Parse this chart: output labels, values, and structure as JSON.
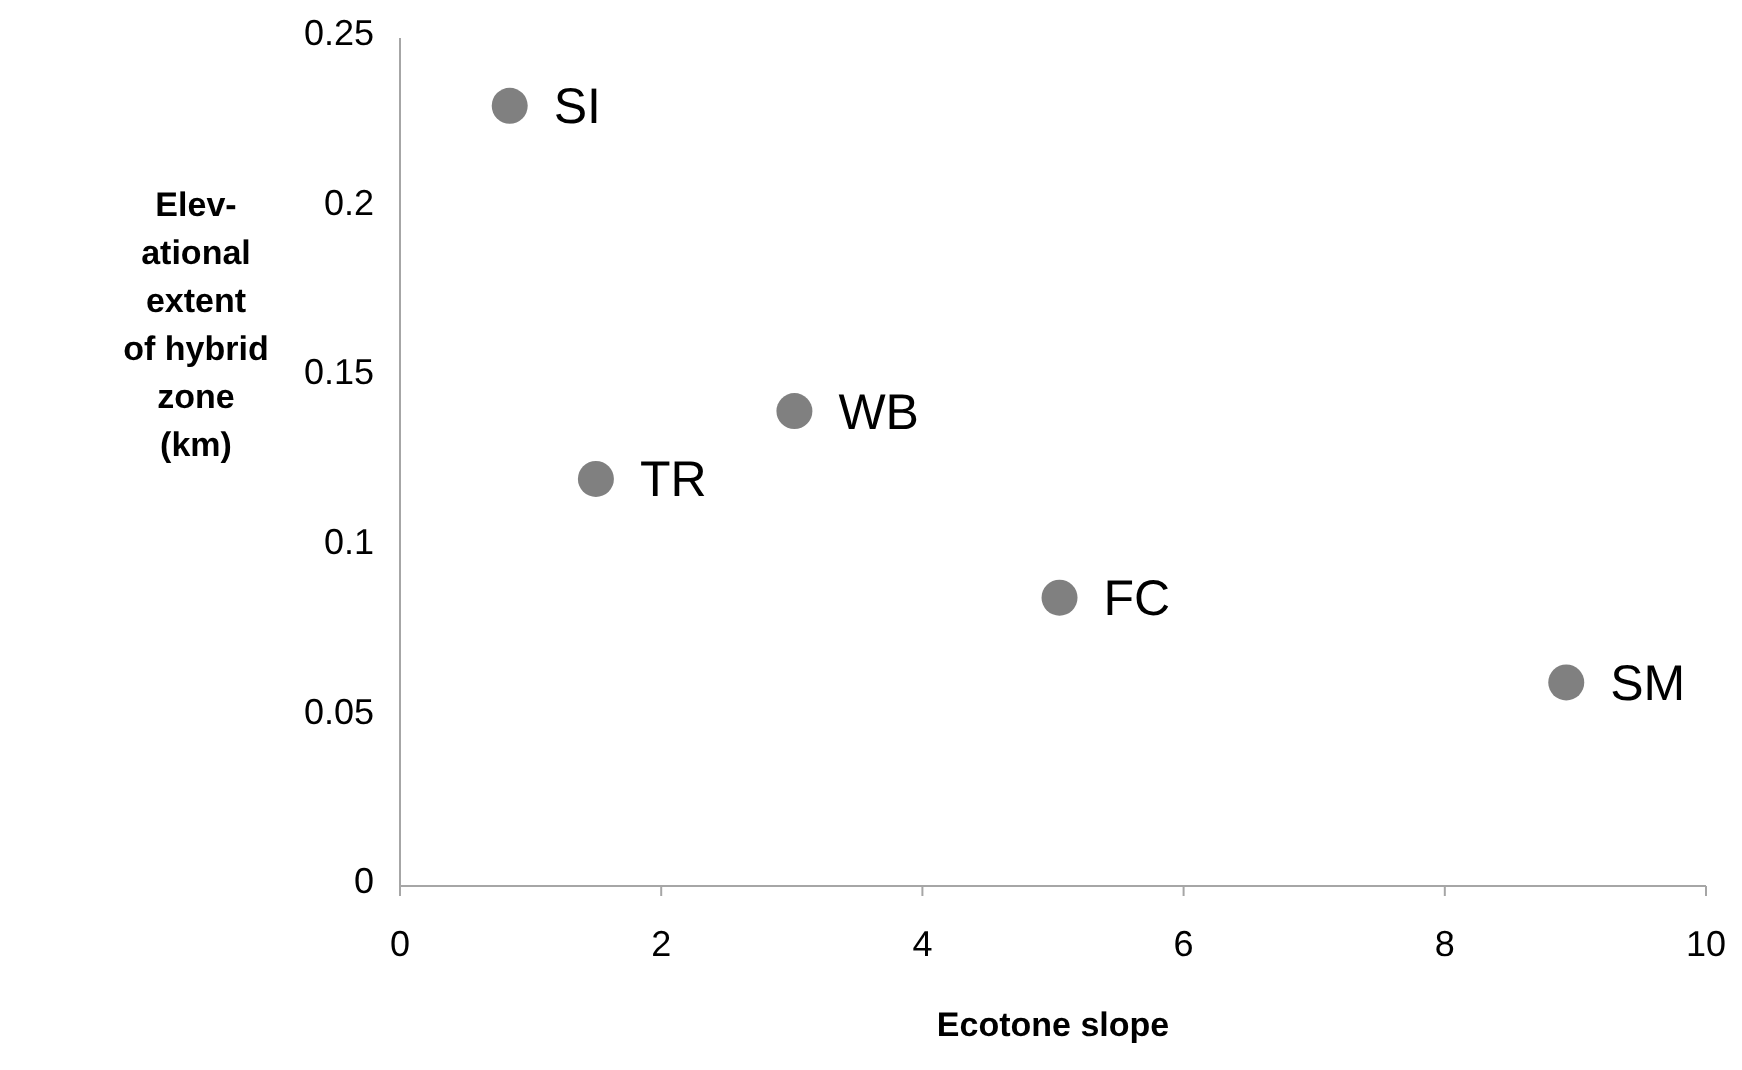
{
  "chart_data": {
    "type": "scatter",
    "xlabel": "Ecotone slope",
    "ylabel": "Elev-\national\nextent\nof hybrid\nzone\n(km)",
    "x": [
      0.84,
      1.5,
      3.02,
      5.05,
      8.93
    ],
    "series": [
      {
        "color": "#808080",
        "values": [
          0.23,
          0.12,
          0.14,
          0.085,
          0.06
        ]
      }
    ],
    "xlim": [
      0,
      10
    ],
    "xticks": [
      0,
      2,
      4,
      6,
      8,
      10
    ],
    "ylim": [
      0,
      0.25
    ],
    "yticks": [
      0,
      0.05,
      0.1,
      0.15,
      0.2,
      0.25
    ],
    "grid": false,
    "marker": "circle",
    "annotations": [
      {
        "text": "SI",
        "x": 0.84,
        "y": 0.23
      },
      {
        "text": "TR",
        "x": 1.5,
        "y": 0.12
      },
      {
        "text": "WB",
        "x": 3.02,
        "y": 0.14
      },
      {
        "text": "FC",
        "x": 5.05,
        "y": 0.085
      },
      {
        "text": "SM",
        "x": 8.93,
        "y": 0.06
      }
    ]
  }
}
